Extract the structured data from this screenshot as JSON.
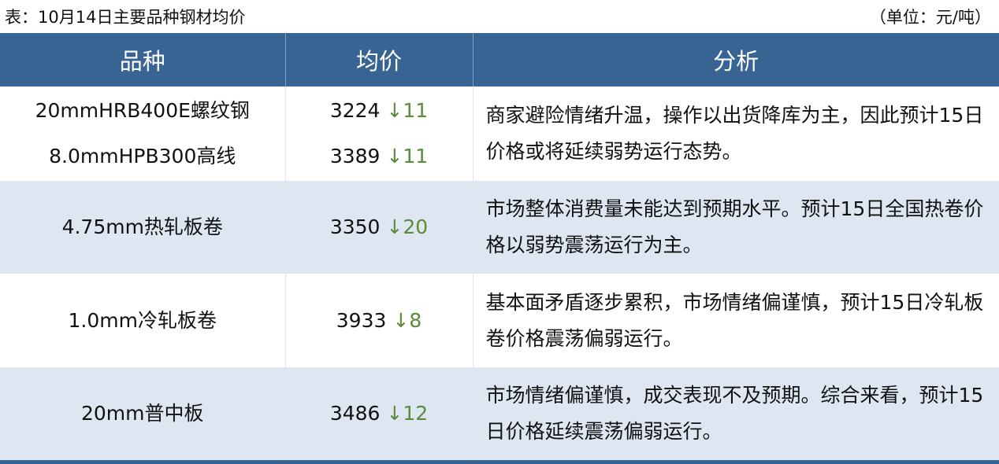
{
  "title": "表：10月14日主要品种钢材均价",
  "unit": "（单位：元/吨）",
  "headers": [
    "品种",
    "均价",
    "分析"
  ],
  "colors": {
    "header_bg": "#386493",
    "alt_row_bg": "#dde6f1",
    "change_down": "#5a8a3a"
  },
  "rows": [
    {
      "items": [
        {
          "name": "20mmHRB400E螺纹钢",
          "price": "3224",
          "arrow": "↓",
          "change": "11"
        },
        {
          "name": "8.0mmHPB300高线",
          "price": "3389",
          "arrow": "↓",
          "change": "11"
        }
      ],
      "analysis": "商家避险情绪升温，操作以出货降库为主，因此预计15日价格或将延续弱势运行态势。"
    },
    {
      "items": [
        {
          "name": "4.75mm热轧板卷",
          "price": "3350",
          "arrow": "↓",
          "change": "20"
        }
      ],
      "analysis": "市场整体消费量未能达到预期水平。预计15日全国热卷价格以弱势震荡运行为主。"
    },
    {
      "items": [
        {
          "name": "1.0mm冷轧板卷",
          "price": "3933",
          "arrow": "↓",
          "change": "8"
        }
      ],
      "analysis": "基本面矛盾逐步累积，市场情绪偏谨慎，预计15日冷轧板卷价格震荡偏弱运行。"
    },
    {
      "items": [
        {
          "name": "20mm普中板",
          "price": "3486",
          "arrow": "↓",
          "change": "12"
        }
      ],
      "analysis": "市场情绪偏谨慎，成交表现不及预期。综合来看，预计15日价格延续震荡偏弱运行。"
    }
  ]
}
